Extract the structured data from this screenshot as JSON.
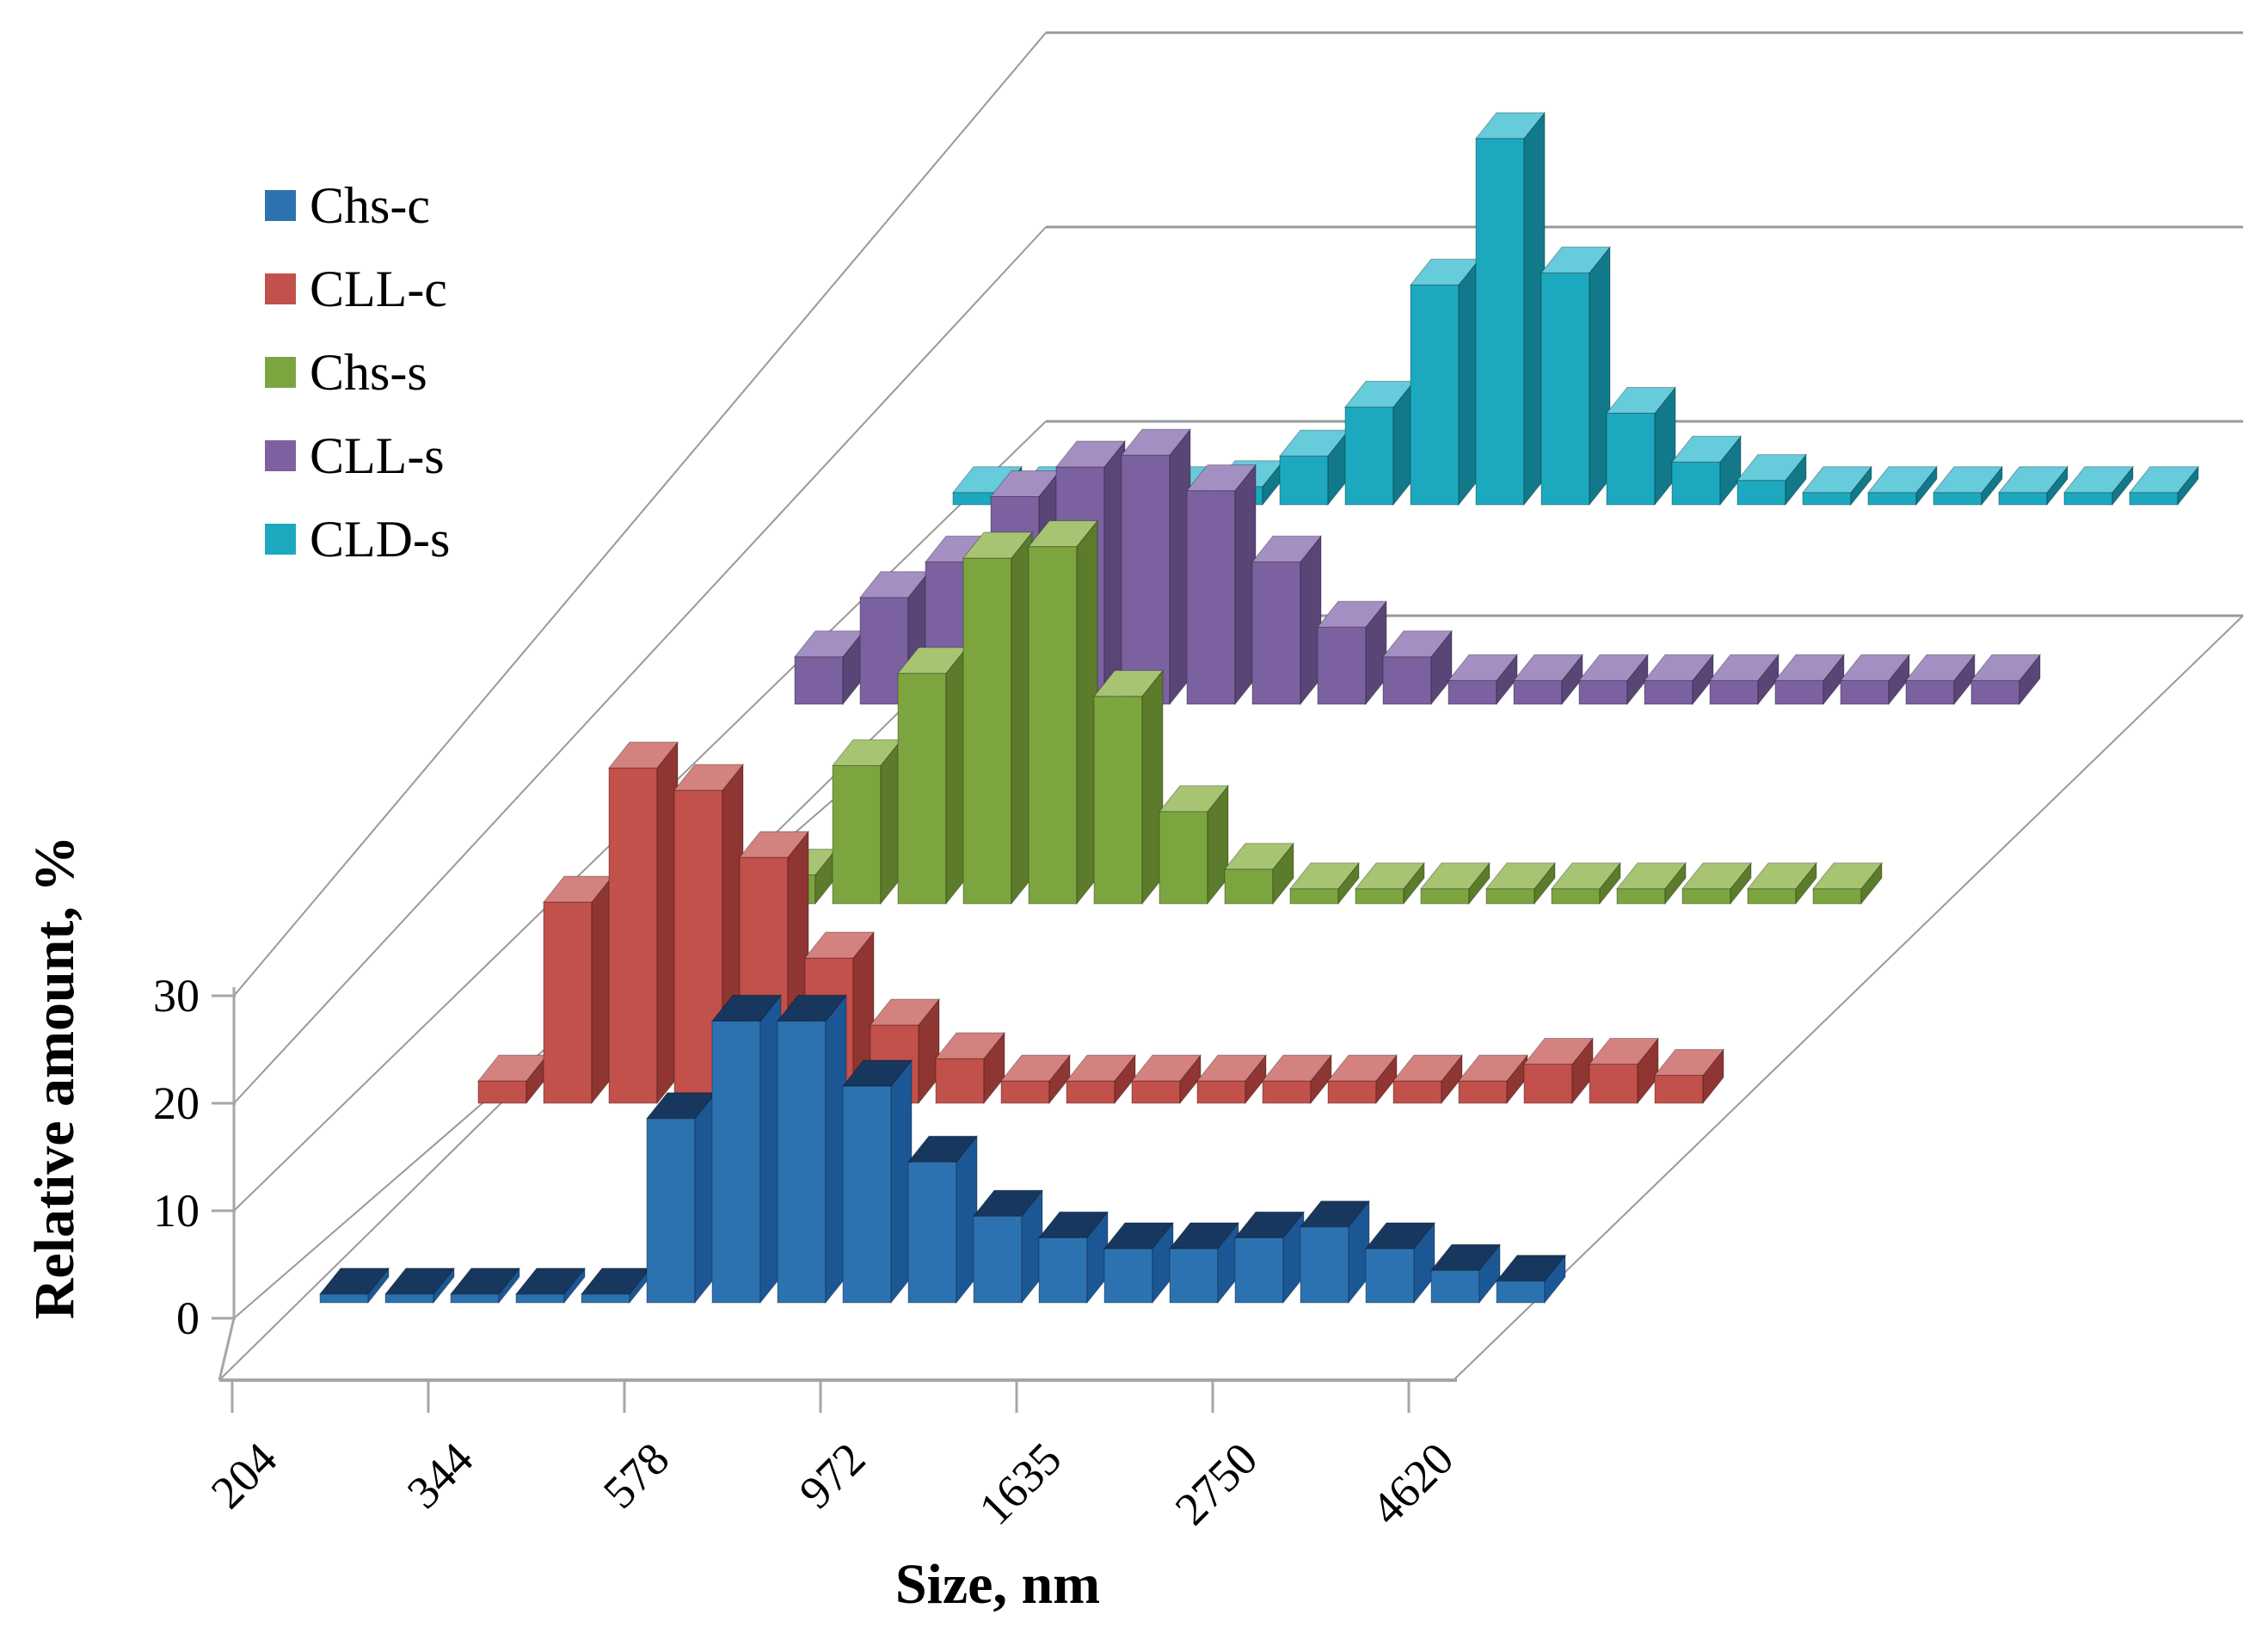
{
  "chart_data": {
    "type": "bar",
    "projection": "3d-depth-rows",
    "title": "",
    "xlabel": "Size, nm",
    "ylabel": "Relative amount, %",
    "x_tick_labels": [
      "204",
      "344",
      "578",
      "972",
      "1635",
      "2750",
      "4620"
    ],
    "x_ticks_every_n_bins": 3,
    "n_bins": 19,
    "y_ticks": [
      0,
      10,
      20,
      30
    ],
    "ylim": [
      0,
      30
    ],
    "grid": true,
    "legend_position": "top-left",
    "background": "#ffffff",
    "gridline_color": "#999999",
    "axis_color": "#a6a6a6",
    "text_color": "#000000",
    "series": [
      {
        "name": "Chs-c",
        "color": "#2d72b0",
        "side_color": "#1c5795",
        "top_color": "#17375e",
        "values": [
          0.8,
          0.8,
          0.8,
          0.8,
          0.8,
          17,
          26,
          26,
          20,
          13,
          8,
          6,
          5,
          5,
          6,
          7,
          5,
          3,
          2
        ]
      },
      {
        "name": "CLL-c",
        "color": "#c2504b",
        "side_color": "#8f3532",
        "top_color": "#d4827f",
        "values": [
          2,
          18,
          30,
          28,
          22,
          13,
          7,
          4,
          2,
          2,
          2,
          2,
          2,
          2,
          2,
          2,
          3.5,
          3.5,
          2.5
        ]
      },
      {
        "name": "Chs-s",
        "color": "#7ca53f",
        "side_color": "#5c7c2b",
        "top_color": "#a6c472",
        "values": [
          1.5,
          2,
          2.5,
          12,
          20,
          30,
          31,
          18,
          8,
          3,
          1.3,
          1.3,
          1.3,
          1.3,
          1.3,
          1.3,
          1.3,
          1.3,
          1.3
        ]
      },
      {
        "name": "CLL-s",
        "color": "#7c61a1",
        "side_color": "#594677",
        "top_color": "#a38fc2",
        "values": [
          4,
          9,
          12,
          17.5,
          20,
          21,
          18,
          12,
          6.5,
          4,
          2,
          2,
          2,
          2,
          2,
          2,
          2,
          2,
          2
        ]
      },
      {
        "name": "CLD-s",
        "color": "#1ca9bf",
        "side_color": "#11798a",
        "top_color": "#66cbdb",
        "values": [
          1,
          1,
          1,
          1,
          1.5,
          4,
          8,
          18,
          30,
          19,
          7.5,
          3.5,
          2,
          1,
          1,
          1,
          1,
          1,
          1
        ]
      }
    ]
  }
}
